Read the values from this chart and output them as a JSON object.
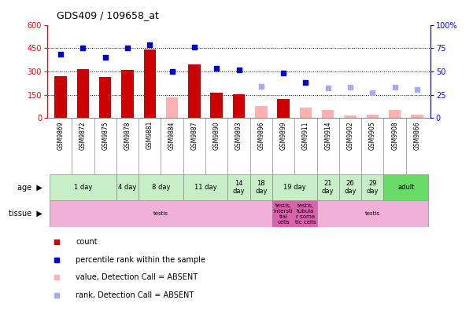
{
  "title": "GDS409 / 109658_at",
  "samples": [
    "GSM9869",
    "GSM9872",
    "GSM9875",
    "GSM9878",
    "GSM9881",
    "GSM9884",
    "GSM9887",
    "GSM9890",
    "GSM9893",
    "GSM9896",
    "GSM9899",
    "GSM9911",
    "GSM9914",
    "GSM9902",
    "GSM9905",
    "GSM9908",
    "GSM9866"
  ],
  "count_present": [
    270,
    315,
    265,
    310,
    440,
    null,
    345,
    165,
    155,
    null,
    125,
    null,
    null,
    null,
    null,
    null,
    null
  ],
  "count_absent": [
    null,
    null,
    null,
    null,
    null,
    135,
    null,
    null,
    null,
    80,
    null,
    70,
    55,
    20,
    25,
    55,
    25
  ],
  "rank_present": [
    410,
    450,
    390,
    450,
    470,
    300,
    455,
    320,
    310,
    null,
    290,
    230,
    null,
    null,
    null,
    null,
    null
  ],
  "rank_absent": [
    null,
    null,
    null,
    null,
    null,
    null,
    null,
    null,
    null,
    205,
    null,
    null,
    195,
    200,
    165,
    200,
    185
  ],
  "age_groups": [
    {
      "label": "1 day",
      "cols": [
        0,
        1,
        2
      ],
      "color": "#c8eec8"
    },
    {
      "label": "4 day",
      "cols": [
        3
      ],
      "color": "#c8eec8"
    },
    {
      "label": "8 day",
      "cols": [
        4,
        5
      ],
      "color": "#c8eec8"
    },
    {
      "label": "11 day",
      "cols": [
        6,
        7
      ],
      "color": "#c8eec8"
    },
    {
      "label": "14\nday",
      "cols": [
        8
      ],
      "color": "#c8eec8"
    },
    {
      "label": "18\nday",
      "cols": [
        9
      ],
      "color": "#c8eec8"
    },
    {
      "label": "19 day",
      "cols": [
        10,
        11
      ],
      "color": "#c8eec8"
    },
    {
      "label": "21\nday",
      "cols": [
        12
      ],
      "color": "#c8eec8"
    },
    {
      "label": "26\nday",
      "cols": [
        13
      ],
      "color": "#c8eec8"
    },
    {
      "label": "29\nday",
      "cols": [
        14
      ],
      "color": "#c8eec8"
    },
    {
      "label": "adult",
      "cols": [
        15,
        16
      ],
      "color": "#66dd66"
    }
  ],
  "tissue_groups": [
    {
      "label": "testis",
      "cols": [
        0,
        1,
        2,
        3,
        4,
        5,
        6,
        7,
        8,
        9
      ],
      "color": "#f0b0d8"
    },
    {
      "label": "testis,\nintersti\ntial\ncells",
      "cols": [
        10
      ],
      "color": "#e060b0"
    },
    {
      "label": "testis,\ntubula\nr soma\ntic cells",
      "cols": [
        11
      ],
      "color": "#e060b0"
    },
    {
      "label": "testis",
      "cols": [
        12,
        13,
        14,
        15,
        16
      ],
      "color": "#f0b0d8"
    }
  ],
  "ylim_left": [
    0,
    600
  ],
  "ylim_right": [
    0,
    100
  ],
  "yticks_left": [
    0,
    150,
    300,
    450,
    600
  ],
  "yticks_right": [
    0,
    25,
    50,
    75,
    100
  ],
  "bar_color_present": "#cc0000",
  "bar_color_absent": "#ffb0b0",
  "dot_color_present": "#0000cc",
  "dot_color_absent": "#aaaaee",
  "tick_bg_color": "#c8c8c8",
  "legend_items": [
    {
      "color": "#cc0000",
      "label": "count"
    },
    {
      "color": "#0000cc",
      "label": "percentile rank within the sample"
    },
    {
      "color": "#ffb0b0",
      "label": "value, Detection Call = ABSENT"
    },
    {
      "color": "#aaaaee",
      "label": "rank, Detection Call = ABSENT"
    }
  ]
}
